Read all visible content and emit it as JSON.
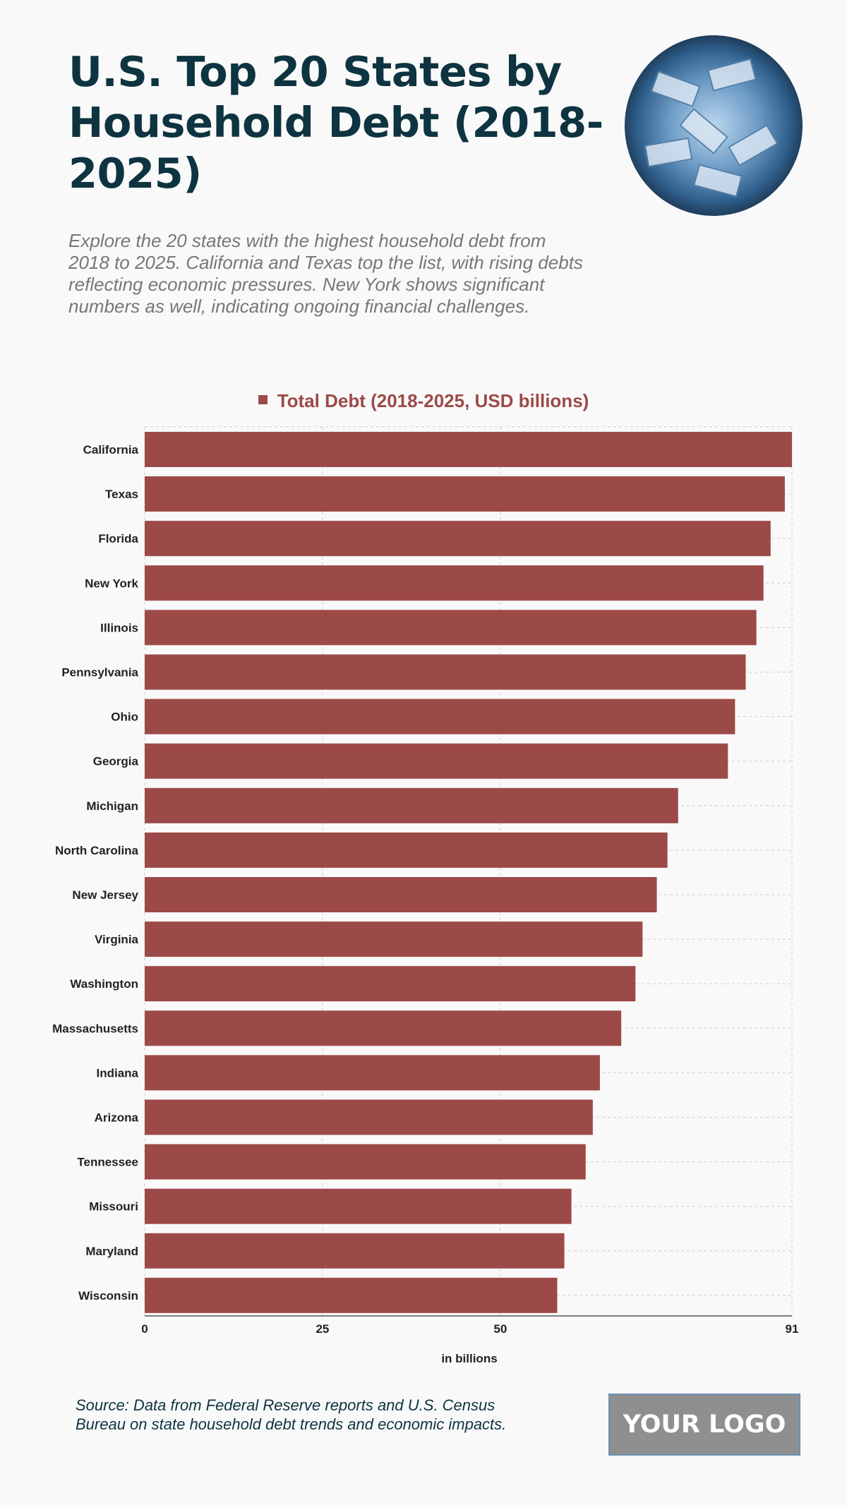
{
  "header": {
    "title": "U.S. Top 20 States by Household Debt (2018-2025)",
    "description": "Explore the 20 states with the highest household debt from 2018 to 2025. California and Texas top the list, with rising debts reflecting economic pressures. New York shows significant numbers as well, indicating ongoing financial challenges."
  },
  "footer": {
    "source": "Source: Data from Federal Reserve reports and U.S. Census Bureau on state household debt trends and economic impacts.",
    "logo": "YOUR LOGO"
  },
  "colors": {
    "bar": "#9c4a48",
    "title": "#0d3440",
    "grid": "#cfcfcf"
  },
  "chart_data": {
    "type": "bar",
    "orientation": "horizontal",
    "legend": "top",
    "grid": true,
    "xlabel": "in billions",
    "xlim": [
      0,
      91
    ],
    "xticks": [
      0,
      25,
      50,
      91
    ],
    "series": [
      {
        "name": "Total Debt (2018-2025, USD billions)",
        "values": [
          91,
          90,
          88,
          87,
          86,
          84.5,
          83,
          82,
          75,
          73.5,
          72,
          70,
          69,
          67,
          64,
          63,
          62,
          60,
          59,
          58
        ]
      }
    ],
    "categories": [
      "California",
      "Texas",
      "Florida",
      "New York",
      "Illinois",
      "Pennsylvania",
      "Ohio",
      "Georgia",
      "Michigan",
      "North Carolina",
      "New Jersey",
      "Virginia",
      "Washington",
      "Massachusetts",
      "Indiana",
      "Arizona",
      "Tennessee",
      "Missouri",
      "Maryland",
      "Wisconsin"
    ]
  }
}
